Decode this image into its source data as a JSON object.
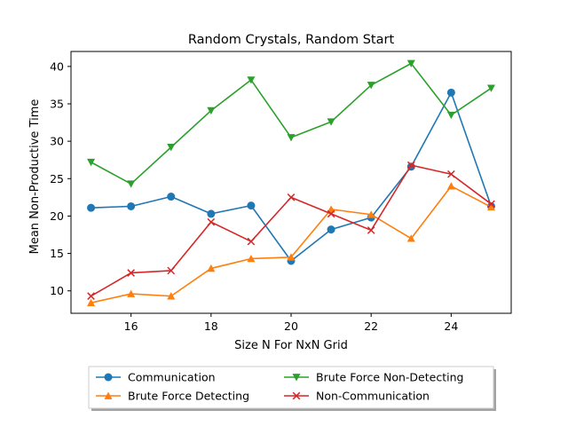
{
  "chart_data": {
    "type": "line",
    "title": "Random Crystals, Random Start",
    "xlabel": "Size N For NxN Grid",
    "ylabel": "Mean Non-Productive Time",
    "xlim": [
      14.5,
      25.5
    ],
    "ylim": [
      7,
      42
    ],
    "xticks": [
      16,
      18,
      20,
      22,
      24
    ],
    "yticks": [
      10,
      15,
      20,
      25,
      30,
      35,
      40
    ],
    "grid": false,
    "legend_position": "below-plot",
    "x": [
      15,
      16,
      17,
      18,
      19,
      20,
      21,
      22,
      23,
      24,
      25
    ],
    "series": [
      {
        "name": "Communication",
        "color": "#1f77b4",
        "marker": "circle",
        "values": [
          21.1,
          21.3,
          22.6,
          20.3,
          21.4,
          14.0,
          18.2,
          19.8,
          26.6,
          36.5,
          21.3
        ]
      },
      {
        "name": "Brute Force Detecting",
        "color": "#ff7f0e",
        "marker": "triangle-up",
        "values": [
          8.4,
          9.6,
          9.3,
          13.0,
          14.3,
          14.5,
          20.9,
          20.2,
          17.0,
          24.0,
          21.2
        ]
      },
      {
        "name": "Brute Force Non-Detecting",
        "color": "#2ca02c",
        "marker": "triangle-down",
        "values": [
          27.2,
          24.3,
          29.2,
          34.1,
          38.2,
          30.5,
          32.6,
          37.5,
          40.4,
          33.5,
          37.1
        ]
      },
      {
        "name": "Non-Communication",
        "color": "#d62728",
        "marker": "x",
        "values": [
          9.3,
          12.4,
          12.7,
          19.2,
          16.6,
          22.5,
          20.3,
          18.1,
          26.8,
          25.6,
          21.6
        ]
      }
    ]
  }
}
